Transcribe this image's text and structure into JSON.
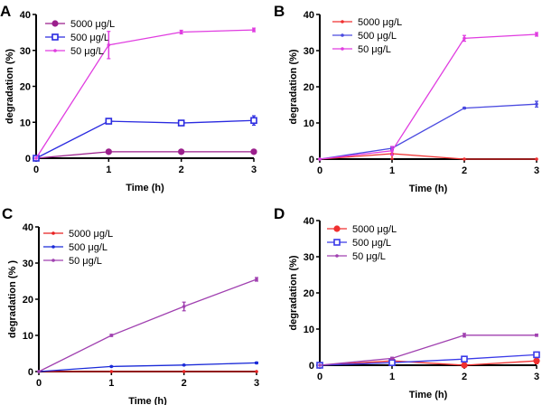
{
  "chart_data": [
    {
      "type": "line",
      "panel": "A",
      "xlabel": "Time (h)",
      "ylabel": "degradation (%)",
      "x": [
        0,
        1,
        2,
        3
      ],
      "xlim": [
        0,
        3
      ],
      "ylim": [
        0,
        40
      ],
      "xticks": [
        0,
        1,
        2,
        3
      ],
      "yticks": [
        0,
        10,
        20,
        30,
        40
      ],
      "legend_position": "top-left",
      "series": [
        {
          "name": "5000 μg/L",
          "color": "#9b1f8c",
          "marker": "circle",
          "values": [
            0,
            1.8,
            1.8,
            1.8
          ],
          "errors": [
            0,
            0.3,
            0.3,
            0.3
          ]
        },
        {
          "name": "500 μg/L",
          "color": "#2a2ae0",
          "marker": "square-open",
          "values": [
            0,
            10.3,
            9.8,
            10.5
          ],
          "errors": [
            0,
            0.4,
            0.4,
            1.3
          ]
        },
        {
          "name": "50 μg/L",
          "color": "#e03ce0",
          "marker": "dot",
          "values": [
            0,
            31.5,
            35.1,
            35.7
          ],
          "errors": [
            0,
            3.8,
            0.5,
            0.5
          ]
        }
      ]
    },
    {
      "type": "line",
      "panel": "B",
      "xlabel": "Time  (h)",
      "ylabel": "degradation (%)",
      "x": [
        0,
        1,
        2,
        3
      ],
      "xlim": [
        0,
        3
      ],
      "ylim": [
        0,
        40
      ],
      "xticks": [
        0,
        1,
        2,
        3
      ],
      "yticks": [
        0,
        10,
        20,
        30,
        40
      ],
      "legend_position": "top-left",
      "series": [
        {
          "name": "5000 μg/L",
          "color": "#f03030",
          "marker": "dot",
          "values": [
            0,
            1.5,
            0,
            0
          ],
          "errors": [
            0,
            1.5,
            0,
            0
          ]
        },
        {
          "name": "500 μg/L",
          "color": "#4a4ae0",
          "marker": "dot",
          "values": [
            0,
            3.0,
            14.1,
            15.2
          ],
          "errors": [
            0,
            0.4,
            0.2,
            0.8
          ]
        },
        {
          "name": "50 μg/L",
          "color": "#e03ce0",
          "marker": "dot",
          "values": [
            0,
            2.3,
            33.4,
            34.5
          ],
          "errors": [
            0,
            1.2,
            0.8,
            0.5
          ]
        }
      ]
    },
    {
      "type": "line",
      "panel": "C",
      "xlabel": "Time (h)",
      "ylabel": "degradation (% )",
      "x": [
        0,
        1,
        2,
        3
      ],
      "xlim": [
        0,
        3
      ],
      "ylim": [
        0,
        40
      ],
      "xticks": [
        0,
        1,
        2,
        3
      ],
      "yticks": [
        0,
        10,
        20,
        30,
        40
      ],
      "legend_position": "top-left",
      "series": [
        {
          "name": "5000 μg/L",
          "color": "#e82020",
          "marker": "dot",
          "values": [
            0,
            0,
            0,
            0
          ],
          "errors": [
            0,
            0,
            0,
            0
          ]
        },
        {
          "name": "500 μg/L",
          "color": "#1a2ad8",
          "marker": "dot",
          "values": [
            0,
            1.4,
            1.8,
            2.4
          ],
          "errors": [
            0,
            0.1,
            0.1,
            0.2
          ]
        },
        {
          "name": "50 μg/L",
          "color": "#a040b0",
          "marker": "dot",
          "values": [
            0,
            10.0,
            18.0,
            25.5
          ],
          "errors": [
            0,
            0.3,
            1.2,
            0.5
          ]
        }
      ]
    },
    {
      "type": "line",
      "panel": "D",
      "xlabel": "Time (h)",
      "ylabel": "degradation (%)",
      "x": [
        0,
        1,
        2,
        3
      ],
      "xlim": [
        0,
        3
      ],
      "ylim": [
        0,
        40
      ],
      "xticks": [
        0,
        1,
        2,
        3
      ],
      "yticks": [
        0,
        10,
        20,
        30,
        40
      ],
      "legend_position": "top-left",
      "series": [
        {
          "name": "5000 μg/L",
          "color": "#f03030",
          "marker": "circle",
          "values": [
            0,
            1.2,
            0,
            1.2
          ],
          "errors": [
            0,
            0.6,
            0,
            0.8
          ]
        },
        {
          "name": "500 μg/L",
          "color": "#3a3ae8",
          "marker": "square-open",
          "values": [
            0,
            0.7,
            1.7,
            2.9
          ],
          "errors": [
            0,
            0.3,
            0.3,
            0.4
          ]
        },
        {
          "name": "50 μg/L",
          "color": "#a040b0",
          "marker": "dot",
          "values": [
            0,
            1.9,
            8.3,
            8.3
          ],
          "errors": [
            0,
            0.3,
            0.5,
            0.3
          ]
        }
      ]
    }
  ]
}
